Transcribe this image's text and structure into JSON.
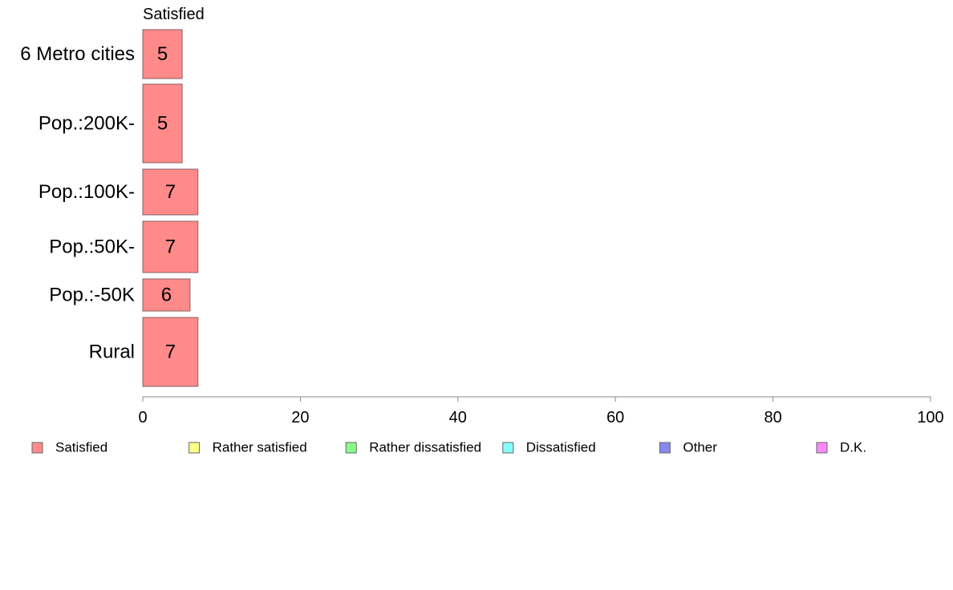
{
  "chart_data": {
    "type": "bar",
    "orientation": "horizontal",
    "title": "",
    "series_header": "Satisfied",
    "categories": [
      "6 Metro cities",
      "Pop.:200K-",
      "Pop.:100K-",
      "Pop.:50K-",
      "Pop.:-50K",
      "Rural"
    ],
    "series": [
      {
        "name": "Satisfied",
        "values": [
          5,
          5,
          7,
          7,
          6,
          7
        ]
      }
    ],
    "xlim": [
      0,
      100
    ],
    "xticks": [
      0,
      20,
      40,
      60,
      80,
      100
    ],
    "xlabel": "",
    "ylabel": "",
    "grid": false,
    "legend_position": "bottom",
    "legend": [
      {
        "label": "Satisfied",
        "color": "#ff8a8a"
      },
      {
        "label": "Rather satisfied",
        "color": "#ffff88"
      },
      {
        "label": "Rather dissatisfied",
        "color": "#88ff88"
      },
      {
        "label": "Dissatisfied",
        "color": "#88ffff"
      },
      {
        "label": "Other",
        "color": "#8888ee"
      },
      {
        "label": "D.K.",
        "color": "#ff88ff"
      }
    ],
    "colors": {
      "bar_fill": "#ff8a8a",
      "bar_stroke": "#8a6060",
      "axis": "#888888"
    }
  }
}
